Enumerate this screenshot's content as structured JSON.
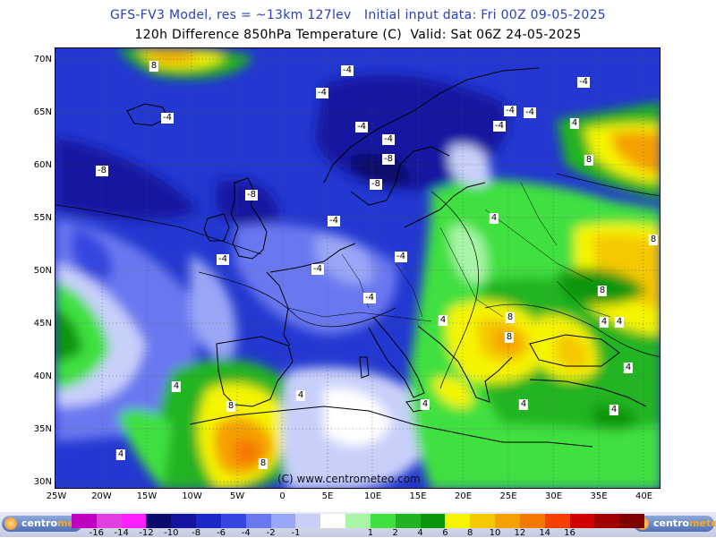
{
  "header": {
    "line1": "GFS-FV3 Model, res = ~13km 127lev   Initial input data: Fri 00Z 09-05-2025",
    "line2": "120h Difference 850hPa Temperature (C)  Valid: Sat 06Z 24-05-2025"
  },
  "map": {
    "lat_labels": [
      "70N",
      "65N",
      "60N",
      "55N",
      "50N",
      "45N",
      "40N",
      "35N",
      "30N"
    ],
    "lon_labels": [
      "25W",
      "20W",
      "15W",
      "10W",
      "5W",
      "0",
      "5E",
      "10E",
      "15E",
      "20E",
      "25E",
      "30E",
      "35E",
      "40E"
    ],
    "credit": "(C) www.centrometeo.com",
    "contour_labels": [
      {
        "text": "8"
      },
      {
        "text": "-4"
      },
      {
        "text": "-4"
      },
      {
        "text": "-4"
      },
      {
        "text": "-4"
      },
      {
        "text": "-4"
      },
      {
        "text": "-4"
      },
      {
        "text": "-4"
      },
      {
        "text": "4"
      },
      {
        "text": "-8"
      },
      {
        "text": "-4"
      },
      {
        "text": "-8"
      },
      {
        "text": "8"
      },
      {
        "text": "-8"
      },
      {
        "text": "-4"
      },
      {
        "text": "-8"
      },
      {
        "text": "4"
      },
      {
        "text": "-4"
      },
      {
        "text": "8"
      },
      {
        "text": "-4"
      },
      {
        "text": "-4"
      },
      {
        "text": "-4"
      },
      {
        "text": "8"
      },
      {
        "text": "-4"
      },
      {
        "text": "4"
      },
      {
        "text": "8"
      },
      {
        "text": "4"
      },
      {
        "text": "8"
      },
      {
        "text": "4"
      },
      {
        "text": "4"
      },
      {
        "text": "4"
      },
      {
        "text": "4"
      },
      {
        "text": "4"
      },
      {
        "text": "8"
      },
      {
        "text": "4"
      },
      {
        "text": "4"
      },
      {
        "text": "8"
      },
      {
        "text": "4"
      }
    ]
  },
  "legend": {
    "logo_text_a": "centro",
    "logo_text_b": "meteo",
    "colors": [
      "#c000c0",
      "#e040e0",
      "#ff20ff",
      "#0a0a6a",
      "#1414a0",
      "#1c28c8",
      "#3646e0",
      "#6a78f0",
      "#9aa6f6",
      "#c8d0fa",
      "#ffffff",
      "#a8f5a8",
      "#40e040",
      "#20b420",
      "#0a960a",
      "#f5f500",
      "#f5c800",
      "#f5a000",
      "#f57800",
      "#f54000",
      "#d00000",
      "#a00000",
      "#800000"
    ],
    "ticks": [
      "-16",
      "-14",
      "-12",
      "-10",
      "-8",
      "-6",
      "-4",
      "-2",
      "-1",
      "1",
      "2",
      "4",
      "6",
      "8",
      "10",
      "12",
      "14",
      "16"
    ]
  }
}
